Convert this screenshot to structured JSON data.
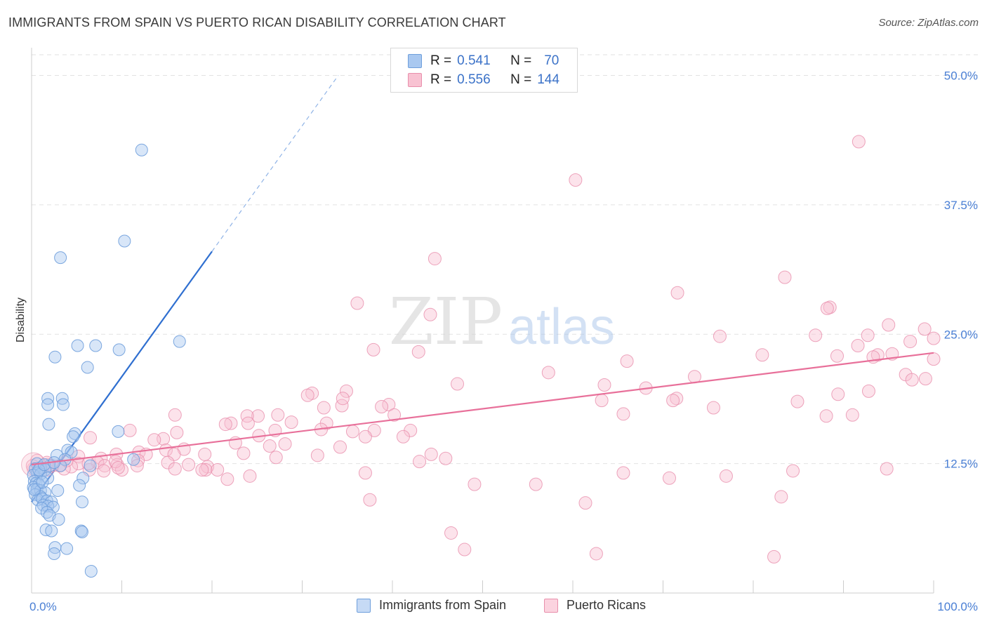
{
  "title": "IMMIGRANTS FROM SPAIN VS PUERTO RICAN DISABILITY CORRELATION CHART",
  "source": "Source: ZipAtlas.com",
  "watermark": {
    "zip": "ZIP",
    "atlas": "atlas"
  },
  "legend": {
    "rows": [
      {
        "r_label": "R =",
        "r_value": "0.541",
        "n_label": "N =",
        "n_value": "70",
        "color": "#a9c8f0",
        "border": "#6f9fdc"
      },
      {
        "r_label": "R =",
        "r_value": "0.556",
        "n_label": "N =",
        "n_value": "144",
        "color": "#f8c2d2",
        "border": "#e88fac"
      }
    ]
  },
  "bottom_legend": [
    {
      "label": "Immigrants from Spain",
      "color": "#c6daf5",
      "border": "#6f9fdc"
    },
    {
      "label": "Puerto Ricans",
      "color": "#fbd3df",
      "border": "#e88fac"
    }
  ],
  "chart_data": {
    "type": "scatter",
    "xlabel": "",
    "ylabel": "Disability",
    "xlim": [
      0,
      100
    ],
    "ylim": [
      0,
      52
    ],
    "x_tick_labels": [
      "0.0%",
      "100.0%"
    ],
    "y_ticks": [
      12.5,
      25.0,
      37.5,
      50.0
    ],
    "y_tick_labels": [
      "12.5%",
      "25.0%",
      "37.5%",
      "50.0%"
    ],
    "grid": true,
    "series": [
      {
        "name": "Immigrants from Spain",
        "color": "#6f9fdc",
        "fill": "#a9c8f0",
        "trend_line": {
          "color": "#2f6fd0",
          "x": [
            0,
            20
          ],
          "y": [
            8.8,
            33.0
          ],
          "dash_to_x": 34,
          "dash_to_y": 50.0
        },
        "points": [
          [
            12.2,
            42.8
          ],
          [
            10.3,
            34.0
          ],
          [
            3.2,
            32.4
          ],
          [
            16.4,
            24.3
          ],
          [
            5.1,
            23.9
          ],
          [
            7.1,
            23.9
          ],
          [
            9.7,
            23.5
          ],
          [
            2.6,
            22.8
          ],
          [
            6.2,
            21.8
          ],
          [
            1.8,
            18.8
          ],
          [
            3.4,
            18.8
          ],
          [
            1.8,
            18.2
          ],
          [
            3.5,
            18.2
          ],
          [
            1.9,
            16.3
          ],
          [
            9.6,
            15.6
          ],
          [
            4.8,
            15.4
          ],
          [
            4.6,
            15.1
          ],
          [
            4.0,
            13.8
          ],
          [
            4.4,
            13.6
          ],
          [
            2.8,
            13.3
          ],
          [
            3.7,
            12.9
          ],
          [
            11.3,
            12.9
          ],
          [
            0.6,
            12.5
          ],
          [
            2.0,
            12.3
          ],
          [
            3.2,
            12.3
          ],
          [
            6.5,
            12.3
          ],
          [
            0.4,
            12.0
          ],
          [
            1.0,
            12.1
          ],
          [
            1.5,
            11.9
          ],
          [
            0.6,
            11.6
          ],
          [
            0.2,
            11.4
          ],
          [
            1.0,
            11.5
          ],
          [
            1.8,
            11.1
          ],
          [
            5.7,
            11.1
          ],
          [
            0.3,
            10.8
          ],
          [
            0.5,
            10.6
          ],
          [
            0.8,
            10.5
          ],
          [
            5.3,
            10.4
          ],
          [
            0.2,
            10.2
          ],
          [
            0.6,
            10.0
          ],
          [
            1.0,
            9.9
          ],
          [
            1.5,
            9.7
          ],
          [
            2.9,
            9.9
          ],
          [
            0.4,
            9.5
          ],
          [
            1.0,
            9.3
          ],
          [
            0.7,
            9.0
          ],
          [
            1.2,
            9.1
          ],
          [
            1.7,
            8.9
          ],
          [
            2.2,
            8.8
          ],
          [
            5.6,
            8.8
          ],
          [
            1.3,
            8.5
          ],
          [
            1.8,
            8.4
          ],
          [
            2.4,
            8.3
          ],
          [
            1.1,
            8.2
          ],
          [
            1.7,
            7.8
          ],
          [
            2.0,
            7.5
          ],
          [
            3.0,
            7.1
          ],
          [
            1.6,
            6.1
          ],
          [
            2.2,
            6.0
          ],
          [
            5.5,
            6.0
          ],
          [
            5.6,
            5.9
          ],
          [
            2.6,
            4.4
          ],
          [
            3.9,
            4.3
          ],
          [
            2.5,
            3.8
          ],
          [
            6.6,
            2.1
          ],
          [
            0.8,
            11.9
          ],
          [
            1.4,
            12.4
          ],
          [
            2.5,
            12.6
          ],
          [
            0.3,
            10.0
          ],
          [
            1.2,
            10.7
          ]
        ]
      },
      {
        "name": "Puerto Ricans",
        "color": "#e88fac",
        "fill": "#f8c2d2",
        "trend_line": {
          "color": "#e8709a",
          "x": [
            0,
            100
          ],
          "y": [
            12.4,
            23.2
          ]
        },
        "points": [
          [
            91.7,
            43.6
          ],
          [
            60.3,
            39.9
          ],
          [
            44.7,
            32.3
          ],
          [
            83.5,
            30.5
          ],
          [
            71.6,
            29.0
          ],
          [
            36.1,
            28.0
          ],
          [
            88.5,
            27.6
          ],
          [
            88.2,
            27.5
          ],
          [
            44.2,
            26.9
          ],
          [
            95.0,
            25.9
          ],
          [
            99.0,
            25.5
          ],
          [
            100.0,
            24.6
          ],
          [
            76.3,
            24.8
          ],
          [
            86.9,
            24.9
          ],
          [
            92.7,
            24.9
          ],
          [
            97.4,
            24.3
          ],
          [
            91.6,
            23.9
          ],
          [
            37.9,
            23.5
          ],
          [
            42.9,
            23.3
          ],
          [
            95.4,
            23.1
          ],
          [
            93.8,
            23.0
          ],
          [
            81.0,
            23.0
          ],
          [
            93.3,
            22.8
          ],
          [
            89.3,
            22.9
          ],
          [
            66.0,
            22.4
          ],
          [
            100.0,
            22.6
          ],
          [
            57.3,
            21.3
          ],
          [
            73.5,
            20.9
          ],
          [
            96.9,
            21.1
          ],
          [
            99.1,
            20.7
          ],
          [
            97.6,
            20.6
          ],
          [
            63.5,
            20.1
          ],
          [
            47.2,
            20.2
          ],
          [
            68.1,
            19.8
          ],
          [
            92.8,
            19.5
          ],
          [
            89.4,
            19.2
          ],
          [
            71.5,
            18.8
          ],
          [
            84.9,
            18.5
          ],
          [
            63.2,
            18.6
          ],
          [
            71.1,
            18.6
          ],
          [
            75.6,
            17.9
          ],
          [
            39.6,
            18.2
          ],
          [
            38.8,
            18.0
          ],
          [
            32.4,
            17.9
          ],
          [
            34.4,
            18.1
          ],
          [
            31.1,
            19.3
          ],
          [
            34.9,
            19.5
          ],
          [
            30.6,
            19.1
          ],
          [
            34.5,
            18.8
          ],
          [
            25.1,
            17.1
          ],
          [
            27.3,
            17.2
          ],
          [
            23.9,
            17.1
          ],
          [
            15.9,
            17.2
          ],
          [
            40.2,
            17.2
          ],
          [
            65.6,
            17.3
          ],
          [
            88.1,
            17.1
          ],
          [
            91.0,
            17.2
          ],
          [
            32.7,
            16.4
          ],
          [
            28.8,
            16.5
          ],
          [
            22.1,
            16.4
          ],
          [
            21.5,
            16.3
          ],
          [
            24.0,
            16.4
          ],
          [
            32.1,
            15.8
          ],
          [
            27.0,
            15.7
          ],
          [
            38.0,
            15.7
          ],
          [
            42.0,
            15.7
          ],
          [
            16.1,
            15.5
          ],
          [
            10.9,
            15.7
          ],
          [
            25.2,
            15.2
          ],
          [
            14.6,
            14.9
          ],
          [
            6.5,
            15.0
          ],
          [
            13.6,
            14.8
          ],
          [
            37.0,
            15.1
          ],
          [
            22.6,
            14.5
          ],
          [
            26.4,
            14.2
          ],
          [
            28.1,
            14.4
          ],
          [
            34.2,
            14.1
          ],
          [
            35.6,
            15.6
          ],
          [
            41.2,
            15.1
          ],
          [
            16.9,
            13.9
          ],
          [
            11.9,
            13.6
          ],
          [
            14.9,
            13.8
          ],
          [
            9.4,
            13.4
          ],
          [
            5.2,
            13.2
          ],
          [
            12.7,
            13.4
          ],
          [
            7.7,
            13.0
          ],
          [
            15.8,
            13.4
          ],
          [
            19.2,
            13.4
          ],
          [
            23.5,
            13.5
          ],
          [
            27.1,
            13.1
          ],
          [
            31.7,
            13.3
          ],
          [
            44.3,
            13.4
          ],
          [
            45.9,
            13.0
          ],
          [
            43.0,
            12.7
          ],
          [
            15.1,
            12.6
          ],
          [
            11.8,
            12.8
          ],
          [
            7.3,
            12.6
          ],
          [
            5.2,
            12.5
          ],
          [
            8.1,
            12.3
          ],
          [
            9.5,
            12.4
          ],
          [
            3.1,
            12.3
          ],
          [
            1.0,
            12.1
          ],
          [
            0.2,
            12.0
          ],
          [
            1.8,
            12.4
          ],
          [
            4.4,
            12.2
          ],
          [
            6.4,
            11.9
          ],
          [
            1.7,
            12.6
          ],
          [
            10.0,
            11.9
          ],
          [
            3.6,
            12.0
          ],
          [
            17.4,
            12.4
          ],
          [
            19.5,
            12.2
          ],
          [
            9.3,
            12.7
          ],
          [
            0.6,
            12.8
          ],
          [
            0.1,
            12.3
          ],
          [
            19.3,
            11.9
          ],
          [
            65.6,
            11.6
          ],
          [
            1.7,
            11.9
          ],
          [
            2.3,
            12.3
          ],
          [
            3.9,
            12.8
          ],
          [
            6.3,
            12.5
          ],
          [
            9.6,
            12.1
          ],
          [
            8.0,
            11.8
          ],
          [
            11.7,
            12.3
          ],
          [
            15.9,
            12.0
          ],
          [
            18.9,
            11.9
          ],
          [
            20.6,
            11.9
          ],
          [
            21.7,
            11.0
          ],
          [
            24.2,
            11.3
          ],
          [
            37.0,
            11.6
          ],
          [
            49.1,
            10.5
          ],
          [
            55.9,
            10.5
          ],
          [
            70.7,
            11.1
          ],
          [
            77.0,
            11.3
          ],
          [
            84.4,
            11.8
          ],
          [
            83.1,
            9.3
          ],
          [
            37.5,
            9.0
          ],
          [
            61.4,
            8.7
          ],
          [
            46.5,
            5.8
          ],
          [
            48.0,
            4.2
          ],
          [
            62.6,
            3.8
          ],
          [
            82.3,
            3.5
          ],
          [
            94.8,
            12.0
          ]
        ]
      }
    ]
  }
}
